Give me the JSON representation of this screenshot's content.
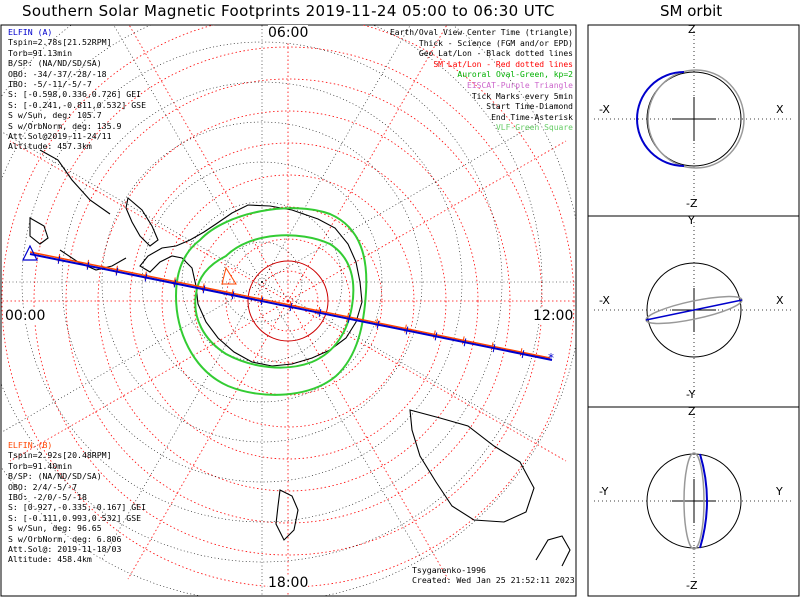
{
  "title": "Southern Solar Magnetic Footprints 2019-11-24 05:00 to 06:30 UTC",
  "sm_title": "SM orbit",
  "hour_labels": {
    "top": "06:00",
    "left": "00:00",
    "right": "12:00",
    "bottom": "18:00"
  },
  "elfin_a": {
    "name": "ELFIN (A)",
    "color": "#0000cc",
    "lines": [
      "Tspin=2.78s[21.52RPM]",
      "Torb=91.13min",
      "B/SP: (NA/ND/SD/SA)",
      "OBO: -34/-37/-28/-18",
      "IBO: -5/-11/-5/-7",
      "S: [-0.598,0.336,0.726] GEI",
      "S: [-0.241,-0.811,0.532] GSE",
      "S w/Sun, deg: 105.7",
      "S w/OrbNorm, deg: 135.9",
      "Att.Sol@2019-11-24/11",
      "Altitude: 457.3km"
    ]
  },
  "elfin_b": {
    "name": "ELFIN (B)",
    "color": "#ff4500",
    "lines": [
      "Tspin=2.92s[20.48RPM]",
      "Torb=91.40min",
      "B/SP: (NA/ND/SD/SA)",
      "OBO: 2/4/-5/-7",
      "IBO: -2/0/-5/-18",
      "S: [0.927,-0.335,-0.167] GEI",
      "S: [-0.111,0.993,0.532] GSE",
      "S w/Sun, deg: 96.65",
      "S w/OrbNorm, deg: 6.806",
      "Att.Sol@: 2019-11-18/03",
      "Altitude: 458.4km"
    ]
  },
  "legend": [
    {
      "text": "Earth/Oval View Center Time (triangle)",
      "color": "#000000"
    },
    {
      "text": "Thick - Science (FGM and/or EPD)",
      "color": "#000000"
    },
    {
      "text": "Geo Lat/Lon - Black dotted lines",
      "color": "#000000"
    },
    {
      "text": "SM Lat/Lon - Red dotted lines",
      "color": "#ff0000"
    },
    {
      "text": "Auroral Oval-Green, kp=2",
      "color": "#00b000"
    },
    {
      "text": "EISCAT-Purple Triangle",
      "color": "#cc66cc"
    },
    {
      "text": "Tick Marks every 5min",
      "color": "#000000"
    },
    {
      "text": "Start Time-Diamond",
      "color": "#000000"
    },
    {
      "text": "End Time-Asterisk",
      "color": "#000000"
    },
    {
      "text": "VLF-Green Square",
      "color": "#66cc66"
    }
  ],
  "credits": {
    "author": "Tsyganenko-1996",
    "created": "Created: Wed Jan 25 21:52:11 2023"
  },
  "orbit_panels": [
    {
      "top": "Z",
      "bottom": "-Z",
      "left": "-X",
      "right": "X"
    },
    {
      "top": "Y",
      "bottom": "-Y",
      "left": "-X",
      "right": "X"
    },
    {
      "top": "Z",
      "bottom": "-Z",
      "left": "-Y",
      "right": "Y"
    }
  ],
  "colors": {
    "elfin_a": "#0000cc",
    "elfin_b": "#ff4500",
    "sm_grid": "#ff0000",
    "auroral_oval": "#33cc33",
    "geo_grid": "#000000"
  }
}
